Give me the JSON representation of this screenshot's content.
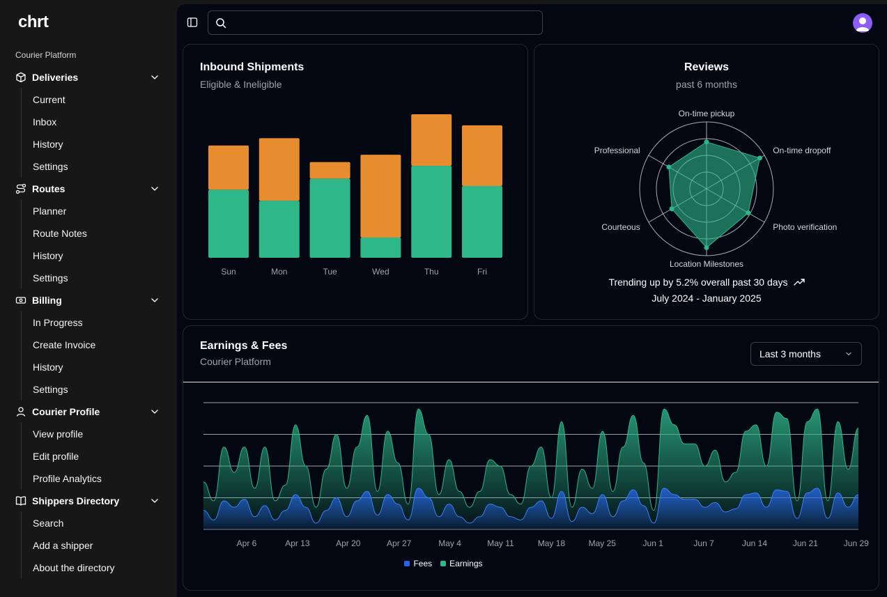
{
  "app": {
    "logo": "chrt",
    "platform_label": "Courier Platform"
  },
  "sidebar": {
    "groups": [
      {
        "label": "Deliveries",
        "icon": "package-icon",
        "items": [
          "Current",
          "Inbox",
          "History",
          "Settings"
        ]
      },
      {
        "label": "Routes",
        "icon": "route-icon",
        "items": [
          "Planner",
          "Route Notes",
          "History",
          "Settings"
        ]
      },
      {
        "label": "Billing",
        "icon": "banknote-icon",
        "items": [
          "In Progress",
          "Create Invoice",
          "History",
          "Settings"
        ]
      },
      {
        "label": "Courier Profile",
        "icon": "user-icon",
        "items": [
          "View profile",
          "Edit profile",
          "Profile Analytics"
        ]
      },
      {
        "label": "Shippers Directory",
        "icon": "book-icon",
        "items": [
          "Search",
          "Add a shipper",
          "About the directory"
        ]
      }
    ]
  },
  "header": {
    "search": {
      "value": "",
      "placeholder": ""
    }
  },
  "colors": {
    "eligible": "#2eb88a",
    "ineligible": "#e88c30",
    "fees": "#2563eb",
    "earnings": "#2eb88a",
    "avatar": "#8b5cf6"
  },
  "inbound": {
    "title": "Inbound Shipments",
    "subtitle": "Eligible & Ineligible",
    "chart_data": {
      "type": "bar",
      "stacked": true,
      "categories": [
        "Sun",
        "Mon",
        "Tue",
        "Wed",
        "Thu",
        "Fri"
      ],
      "series": [
        {
          "name": "Eligible",
          "values": [
            185,
            155,
            215,
            55,
            250,
            195
          ]
        },
        {
          "name": "Ineligible",
          "values": [
            120,
            170,
            45,
            225,
            140,
            165
          ]
        }
      ],
      "ylim": [
        0,
        390
      ],
      "grid": false,
      "xlabel": "",
      "ylabel": ""
    }
  },
  "reviews": {
    "title": "Reviews",
    "subtitle": "past 6 months",
    "trend_text": "Trending up by 5.2% overall past 30 days",
    "date_range": "July 2024 - January 2025",
    "chart_data": {
      "type": "radar",
      "axes": [
        "On-time pickup",
        "On-time dropoff",
        "Photo verification",
        "Location Milestones",
        "Courteous",
        "Professional"
      ],
      "values": [
        70,
        92,
        72,
        88,
        60,
        65
      ],
      "range": [
        0,
        100
      ]
    }
  },
  "earnings": {
    "title": "Earnings & Fees",
    "subtitle": "Courier Platform",
    "range_label": "Last 3 months",
    "chart_data": {
      "type": "area",
      "xticks": [
        "Apr 6",
        "Apr 13",
        "Apr 20",
        "Apr 27",
        "May 4",
        "May 11",
        "May 18",
        "May 25",
        "Jun 1",
        "Jun 7",
        "Jun 14",
        "Jun 21",
        "Jun 29"
      ],
      "ylim": [
        0,
        400
      ],
      "grid": true,
      "legend": [
        "Fees",
        "Earnings"
      ],
      "series": [
        {
          "name": "Earnings",
          "values": [
            150,
            90,
            260,
            180,
            260,
            130,
            260,
            90,
            140,
            330,
            200,
            70,
            190,
            300,
            130,
            260,
            360,
            120,
            310,
            210,
            80,
            380,
            300,
            110,
            220,
            120,
            70,
            120,
            220,
            200,
            110,
            80,
            200,
            260,
            100,
            340,
            70,
            190,
            130,
            310,
            120,
            260,
            360,
            210,
            60,
            380,
            330,
            270,
            270,
            200,
            250,
            150,
            180,
            310,
            330,
            200,
            370,
            350,
            90,
            340,
            380,
            90,
            340,
            190,
            320
          ]
        },
        {
          "name": "Fees",
          "values": [
            60,
            30,
            90,
            70,
            95,
            40,
            75,
            30,
            60,
            110,
            70,
            20,
            60,
            100,
            40,
            90,
            120,
            45,
            110,
            80,
            30,
            130,
            100,
            40,
            80,
            40,
            20,
            40,
            80,
            70,
            40,
            30,
            70,
            90,
            35,
            120,
            25,
            70,
            50,
            110,
            40,
            90,
            125,
            75,
            20,
            130,
            110,
            95,
            95,
            70,
            85,
            55,
            65,
            110,
            115,
            70,
            125,
            120,
            35,
            115,
            130,
            35,
            115,
            70,
            110
          ]
        }
      ]
    }
  }
}
